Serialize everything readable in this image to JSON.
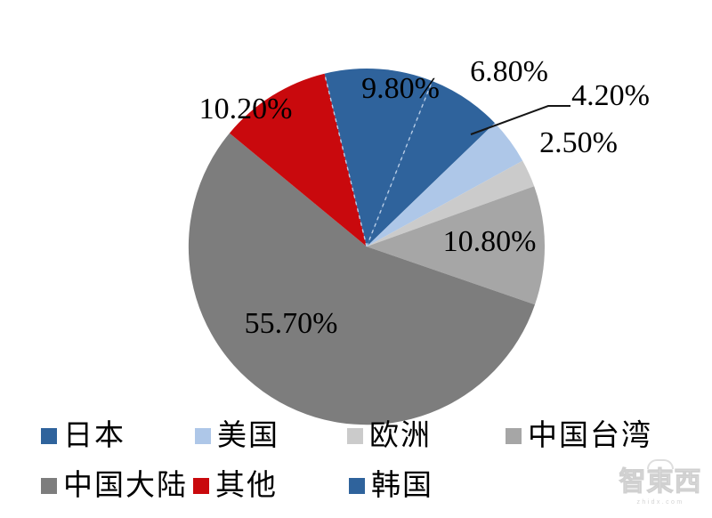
{
  "chart_data": {
    "type": "pie",
    "title": "",
    "unit": "%",
    "direction": "clockwise",
    "start_angle_deg": -13.7,
    "legend_position": "bottom",
    "series": [
      {
        "name": "日本",
        "value": 9.8,
        "label": "9.80%",
        "color": "#2F639C"
      },
      {
        "name": "韩国",
        "value": 6.8,
        "label": "6.80%",
        "color": "#2F639C"
      },
      {
        "name": "美国",
        "value": 4.2,
        "label": "4.20%",
        "color": "#AEC7E8"
      },
      {
        "name": "欧洲",
        "value": 2.5,
        "label": "2.50%",
        "color": "#CBCBCB"
      },
      {
        "name": "中国台湾",
        "value": 10.8,
        "label": "10.80%",
        "color": "#A6A6A6"
      },
      {
        "name": "中国大陆",
        "value": 55.7,
        "label": "55.70%",
        "color": "#7D7D7D"
      },
      {
        "name": "其他",
        "value": 10.2,
        "label": "10.20%",
        "color": "#C9090D"
      }
    ],
    "legend_order": [
      "日本",
      "美国",
      "欧洲",
      "中国台湾",
      "中国大陆",
      "其他",
      "韩国"
    ]
  },
  "watermark": {
    "brand": "智東西",
    "domain": "zhidx.com"
  }
}
